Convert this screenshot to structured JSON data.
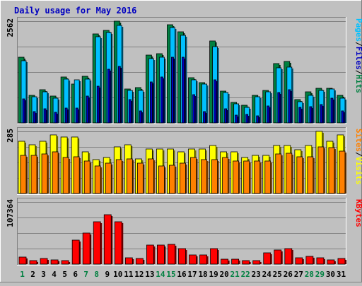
{
  "title": "Daily usage for May 2016",
  "colors": {
    "background": "#c0c0c0",
    "title": "#0000c0",
    "hits": "#008040",
    "files": "#00c0ff",
    "pages": "#0000c0",
    "visits": "#ffff00",
    "sites": "#ff8000",
    "kbytes": "#ff0000",
    "weekend_label": "#008040",
    "weekday_label": "#000000"
  },
  "chart_data": [
    {
      "type": "bar",
      "name": "hits-files-pages",
      "x": [
        1,
        2,
        3,
        4,
        5,
        6,
        7,
        8,
        9,
        10,
        11,
        12,
        13,
        14,
        15,
        16,
        17,
        18,
        19,
        20,
        21,
        22,
        23,
        24,
        25,
        26,
        27,
        28,
        29,
        30,
        31
      ],
      "y_max_label": "2562",
      "ylim": [
        0,
        2562
      ],
      "legend": [
        "Pages",
        "Files",
        "Hits"
      ],
      "series": [
        {
          "name": "Hits",
          "values": [
            1650,
            700,
            830,
            680,
            1160,
            970,
            1180,
            2250,
            2330,
            2562,
            860,
            890,
            1700,
            1740,
            2480,
            2290,
            1140,
            1010,
            2070,
            800,
            520,
            440,
            690,
            820,
            1500,
            1550,
            590,
            780,
            880,
            880,
            690
          ]
        },
        {
          "name": "Files",
          "values": [
            1560,
            650,
            790,
            630,
            1110,
            1090,
            1110,
            2170,
            2280,
            2450,
            810,
            810,
            1620,
            1660,
            2400,
            2210,
            1090,
            970,
            1930,
            760,
            480,
            400,
            650,
            790,
            1390,
            1410,
            540,
            690,
            820,
            850,
            630
          ]
        },
        {
          "name": "Pages",
          "values": [
            610,
            290,
            350,
            260,
            370,
            370,
            670,
            920,
            1360,
            1430,
            580,
            310,
            1040,
            1150,
            1660,
            1660,
            720,
            280,
            1080,
            350,
            200,
            210,
            180,
            430,
            770,
            840,
            390,
            410,
            460,
            620,
            310
          ]
        }
      ]
    },
    {
      "type": "bar",
      "name": "visits-sites",
      "y_max_label": "285",
      "ylim": [
        0,
        285
      ],
      "legend": [
        "Sites",
        "Visits"
      ],
      "series": [
        {
          "name": "Visits",
          "values": [
            240,
            225,
            240,
            270,
            260,
            260,
            190,
            155,
            165,
            215,
            225,
            160,
            205,
            205,
            205,
            190,
            205,
            205,
            220,
            190,
            190,
            165,
            175,
            175,
            220,
            220,
            200,
            220,
            285,
            240,
            270
          ]
        },
        {
          "name": "Sites",
          "values": [
            175,
            175,
            180,
            190,
            165,
            170,
            150,
            125,
            140,
            155,
            160,
            140,
            160,
            125,
            130,
            140,
            165,
            155,
            155,
            165,
            150,
            150,
            150,
            150,
            180,
            185,
            170,
            170,
            215,
            210,
            195
          ]
        }
      ]
    },
    {
      "type": "bar",
      "name": "kbytes",
      "y_max_label": "107364",
      "ylim": [
        0,
        107364
      ],
      "legend": [
        "KBytes"
      ],
      "series": [
        {
          "name": "KBytes",
          "values": [
            12700,
            6000,
            9400,
            7700,
            6000,
            41000,
            54000,
            73000,
            86000,
            73000,
            11000,
            10000,
            33000,
            33000,
            34000,
            27000,
            16000,
            16000,
            27000,
            8400,
            8400,
            6400,
            6400,
            19000,
            25000,
            27000,
            11000,
            14000,
            11000,
            7700,
            9400
          ]
        }
      ]
    }
  ],
  "x_labels": [
    "1",
    "2",
    "3",
    "4",
    "5",
    "6",
    "7",
    "8",
    "9",
    "10",
    "11",
    "12",
    "13",
    "14",
    "15",
    "16",
    "17",
    "18",
    "19",
    "20",
    "21",
    "22",
    "23",
    "24",
    "25",
    "26",
    "27",
    "28",
    "29",
    "30",
    "31"
  ],
  "weekend_days": [
    1,
    7,
    8,
    14,
    15,
    21,
    22,
    28,
    29
  ],
  "legends": {
    "top": [
      {
        "text": "Pages",
        "color": "#00c0ff"
      },
      {
        "text": "/",
        "color": "#000000"
      },
      {
        "text": "Files",
        "color": "#0000c0"
      },
      {
        "text": "/",
        "color": "#000000"
      },
      {
        "text": "Hits",
        "color": "#008040"
      }
    ],
    "middle": [
      {
        "text": "Sites",
        "color": "#ff8000"
      },
      {
        "text": "/",
        "color": "#000000"
      },
      {
        "text": "Visits",
        "color": "#ffff00"
      }
    ],
    "bottom": [
      {
        "text": "KBytes",
        "color": "#ff0000"
      }
    ]
  }
}
